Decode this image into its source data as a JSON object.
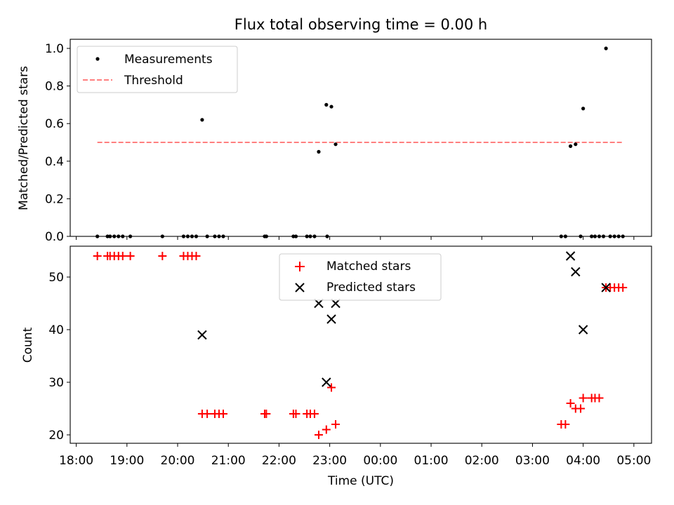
{
  "chart_data": [
    {
      "type": "scatter",
      "title": "Flux total observing time = 0.00 h",
      "xlabel": "",
      "ylabel": "Matched/Predicted stars",
      "ylim": [
        0.0,
        1.05
      ],
      "yticks": [
        "0.0",
        "0.2",
        "0.4",
        "0.6",
        "0.8",
        "1.0"
      ],
      "grid": false,
      "legend_position": "top-left",
      "series": [
        {
          "name": "Measurements",
          "marker": "dot",
          "color": "#000000",
          "points": [
            [
              "18:25",
              0
            ],
            [
              "18:37",
              0
            ],
            [
              "18:40",
              0
            ],
            [
              "18:45",
              0
            ],
            [
              "18:50",
              0
            ],
            [
              "18:55",
              0
            ],
            [
              "19:04",
              0
            ],
            [
              "19:42",
              0
            ],
            [
              "20:07",
              0
            ],
            [
              "20:12",
              0
            ],
            [
              "20:17",
              0
            ],
            [
              "20:22",
              0
            ],
            [
              "20:29",
              0.62
            ],
            [
              "20:35",
              0
            ],
            [
              "20:44",
              0
            ],
            [
              "20:49",
              0
            ],
            [
              "20:54",
              0
            ],
            [
              "21:43",
              0
            ],
            [
              "21:45",
              0
            ],
            [
              "22:17",
              0
            ],
            [
              "22:20",
              0
            ],
            [
              "22:33",
              0
            ],
            [
              "22:37",
              0
            ],
            [
              "22:42",
              0
            ],
            [
              "22:47",
              0.45
            ],
            [
              "22:56",
              0.7
            ],
            [
              "22:57",
              0
            ],
            [
              "23:02",
              0.69
            ],
            [
              "23:07",
              0.49
            ],
            [
              "03:34",
              0
            ],
            [
              "03:39",
              0
            ],
            [
              "03:45",
              0.48
            ],
            [
              "03:51",
              0.49
            ],
            [
              "03:57",
              0
            ],
            [
              "04:00",
              0.68
            ],
            [
              "04:10",
              0
            ],
            [
              "04:14",
              0
            ],
            [
              "04:19",
              0
            ],
            [
              "04:24",
              0
            ],
            [
              "04:27",
              1.0
            ],
            [
              "04:32",
              0
            ],
            [
              "04:37",
              0
            ],
            [
              "04:42",
              0
            ],
            [
              "04:47",
              0
            ]
          ]
        },
        {
          "name": "Threshold",
          "style": "dashed",
          "color": "#ff7f7f",
          "points": [
            [
              "18:25",
              0.5
            ],
            [
              "04:47",
              0.5
            ]
          ]
        }
      ]
    },
    {
      "type": "scatter",
      "xlabel": "Time (UTC)",
      "ylabel": "Count",
      "ylim": [
        18.2,
        55.5
      ],
      "yticks": [
        "20",
        "30",
        "40",
        "50"
      ],
      "xticks": [
        "18:00",
        "19:00",
        "20:00",
        "21:00",
        "22:00",
        "23:00",
        "00:00",
        "01:00",
        "02:00",
        "03:00",
        "04:00",
        "05:00"
      ],
      "grid": false,
      "legend_position": "top-center",
      "series": [
        {
          "name": "Matched stars",
          "marker": "plus",
          "color": "#ff0000",
          "points": [
            [
              "18:25",
              54
            ],
            [
              "18:37",
              54
            ],
            [
              "18:40",
              54
            ],
            [
              "18:45",
              54
            ],
            [
              "18:50",
              54
            ],
            [
              "18:55",
              54
            ],
            [
              "19:04",
              54
            ],
            [
              "19:42",
              54
            ],
            [
              "20:07",
              54
            ],
            [
              "20:12",
              54
            ],
            [
              "20:17",
              54
            ],
            [
              "20:22",
              54
            ],
            [
              "20:29",
              24
            ],
            [
              "20:35",
              24
            ],
            [
              "20:44",
              24
            ],
            [
              "20:49",
              24
            ],
            [
              "20:54",
              24
            ],
            [
              "21:43",
              24
            ],
            [
              "21:45",
              24
            ],
            [
              "22:17",
              24
            ],
            [
              "22:20",
              24
            ],
            [
              "22:33",
              24
            ],
            [
              "22:37",
              24
            ],
            [
              "22:42",
              24
            ],
            [
              "22:47",
              20
            ],
            [
              "22:56",
              21
            ],
            [
              "23:02",
              29
            ],
            [
              "23:07",
              22
            ],
            [
              "03:34",
              22
            ],
            [
              "03:39",
              22
            ],
            [
              "03:45",
              26
            ],
            [
              "03:51",
              25
            ],
            [
              "03:57",
              25
            ],
            [
              "04:00",
              27
            ],
            [
              "04:10",
              27
            ],
            [
              "04:14",
              27
            ],
            [
              "04:19",
              27
            ],
            [
              "04:27",
              48
            ],
            [
              "04:32",
              48
            ],
            [
              "04:37",
              48
            ],
            [
              "04:42",
              48
            ],
            [
              "04:47",
              48
            ]
          ]
        },
        {
          "name": "Predicted stars",
          "marker": "x",
          "color": "#000000",
          "points": [
            [
              "20:29",
              39
            ],
            [
              "22:47",
              45
            ],
            [
              "22:56",
              30
            ],
            [
              "23:02",
              42
            ],
            [
              "23:07",
              45
            ],
            [
              "03:45",
              54
            ],
            [
              "03:51",
              51
            ],
            [
              "04:00",
              40
            ],
            [
              "04:27",
              48
            ]
          ]
        }
      ]
    }
  ]
}
